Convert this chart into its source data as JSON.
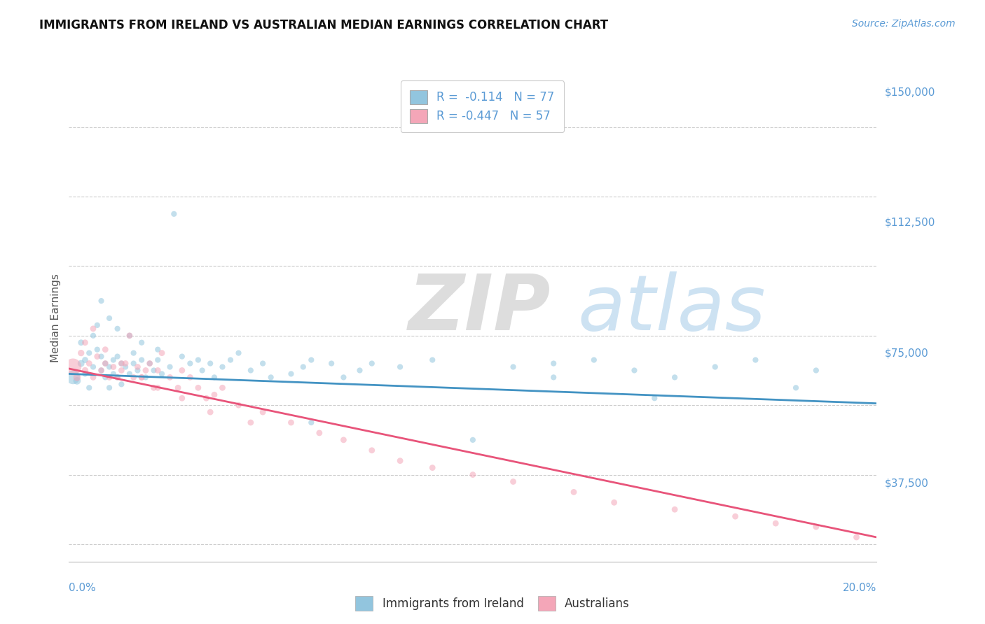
{
  "title": "IMMIGRANTS FROM IRELAND VS AUSTRALIAN MEDIAN EARNINGS CORRELATION CHART",
  "source_text": "Source: ZipAtlas.com",
  "ylabel": "Median Earnings",
  "xlim": [
    0.0,
    0.2
  ],
  "ylim": [
    15000,
    155000
  ],
  "yticks": [
    37500,
    75000,
    112500,
    150000
  ],
  "ytick_labels": [
    "$37,500",
    "$75,000",
    "$112,500",
    "$150,000"
  ],
  "xtick_labels": [
    "0.0%",
    "20.0%"
  ],
  "legend_blue_r": "R =  -0.114",
  "legend_blue_n": "N = 77",
  "legend_pink_r": "R = -0.447",
  "legend_pink_n": "N = 57",
  "blue_color": "#92c5de",
  "pink_color": "#f4a6b8",
  "blue_line_color": "#4393c3",
  "pink_line_color": "#e8547a",
  "background_color": "#ffffff",
  "axis_label_color": "#555555",
  "tick_color": "#5b9bd5",
  "blue_trendline_x": [
    0.0,
    0.2
  ],
  "blue_trendline_y": [
    69000,
    60500
  ],
  "pink_trendline_x": [
    0.0,
    0.2
  ],
  "pink_trendline_y": [
    70500,
    22000
  ],
  "blue_x": [
    0.001,
    0.002,
    0.003,
    0.003,
    0.004,
    0.004,
    0.005,
    0.005,
    0.006,
    0.006,
    0.007,
    0.007,
    0.008,
    0.008,
    0.009,
    0.009,
    0.01,
    0.01,
    0.011,
    0.011,
    0.012,
    0.012,
    0.013,
    0.013,
    0.014,
    0.015,
    0.016,
    0.016,
    0.017,
    0.018,
    0.019,
    0.02,
    0.021,
    0.022,
    0.023,
    0.025,
    0.026,
    0.028,
    0.03,
    0.032,
    0.033,
    0.035,
    0.036,
    0.038,
    0.04,
    0.042,
    0.045,
    0.048,
    0.05,
    0.055,
    0.058,
    0.06,
    0.065,
    0.068,
    0.072,
    0.075,
    0.082,
    0.09,
    0.1,
    0.11,
    0.12,
    0.13,
    0.14,
    0.15,
    0.16,
    0.17,
    0.185,
    0.008,
    0.01,
    0.012,
    0.015,
    0.018,
    0.022,
    0.06,
    0.12,
    0.145,
    0.18
  ],
  "blue_y": [
    68000,
    67000,
    72000,
    78000,
    73000,
    69000,
    75000,
    65000,
    71000,
    80000,
    76000,
    83000,
    70000,
    74000,
    68000,
    72000,
    71000,
    65000,
    73000,
    69000,
    68000,
    74000,
    66000,
    72000,
    71000,
    69000,
    75000,
    72000,
    70000,
    73000,
    68000,
    72000,
    70000,
    73000,
    69000,
    71000,
    115000,
    74000,
    72000,
    73000,
    70000,
    72000,
    68000,
    71000,
    73000,
    75000,
    70000,
    72000,
    68000,
    69000,
    71000,
    73000,
    72000,
    68000,
    70000,
    72000,
    71000,
    73000,
    50000,
    71000,
    72000,
    73000,
    70000,
    68000,
    71000,
    73000,
    70000,
    90000,
    85000,
    82000,
    80000,
    78000,
    76000,
    55000,
    68000,
    62000,
    65000
  ],
  "blue_sizes": [
    200,
    60,
    50,
    40,
    40,
    35,
    35,
    35,
    35,
    35,
    35,
    35,
    35,
    35,
    35,
    35,
    35,
    35,
    35,
    35,
    35,
    35,
    35,
    35,
    35,
    35,
    35,
    35,
    35,
    35,
    35,
    35,
    35,
    35,
    35,
    35,
    35,
    35,
    35,
    35,
    35,
    35,
    35,
    35,
    35,
    35,
    35,
    35,
    35,
    35,
    35,
    35,
    35,
    35,
    35,
    35,
    35,
    35,
    35,
    35,
    35,
    35,
    35,
    35,
    35,
    35,
    35,
    35,
    35,
    35,
    35,
    35,
    35,
    35,
    35,
    35,
    35
  ],
  "pink_x": [
    0.001,
    0.002,
    0.003,
    0.004,
    0.005,
    0.006,
    0.007,
    0.008,
    0.009,
    0.01,
    0.011,
    0.012,
    0.013,
    0.014,
    0.015,
    0.016,
    0.017,
    0.018,
    0.019,
    0.02,
    0.021,
    0.022,
    0.023,
    0.025,
    0.027,
    0.028,
    0.03,
    0.032,
    0.034,
    0.036,
    0.038,
    0.042,
    0.048,
    0.055,
    0.062,
    0.068,
    0.075,
    0.082,
    0.09,
    0.1,
    0.11,
    0.125,
    0.135,
    0.15,
    0.165,
    0.175,
    0.185,
    0.195,
    0.004,
    0.006,
    0.009,
    0.013,
    0.018,
    0.022,
    0.028,
    0.035,
    0.045
  ],
  "pink_y": [
    71000,
    68000,
    75000,
    70000,
    72000,
    68000,
    74000,
    70000,
    72000,
    68000,
    71000,
    68000,
    70000,
    72000,
    80000,
    68000,
    71000,
    68000,
    70000,
    72000,
    65000,
    70000,
    75000,
    68000,
    65000,
    70000,
    68000,
    65000,
    62000,
    63000,
    65000,
    60000,
    58000,
    55000,
    52000,
    50000,
    47000,
    44000,
    42000,
    40000,
    38000,
    35000,
    32000,
    30000,
    28000,
    26000,
    25000,
    22000,
    78000,
    82000,
    76000,
    72000,
    68000,
    65000,
    62000,
    58000,
    55000
  ],
  "pink_sizes": [
    300,
    60,
    45,
    45,
    40,
    40,
    40,
    40,
    40,
    40,
    40,
    40,
    40,
    40,
    40,
    40,
    40,
    40,
    40,
    40,
    40,
    40,
    40,
    40,
    40,
    40,
    40,
    40,
    40,
    40,
    40,
    40,
    40,
    40,
    40,
    40,
    40,
    40,
    40,
    40,
    40,
    40,
    40,
    40,
    40,
    40,
    40,
    40,
    40,
    40,
    40,
    40,
    40,
    40,
    40,
    40,
    40
  ]
}
